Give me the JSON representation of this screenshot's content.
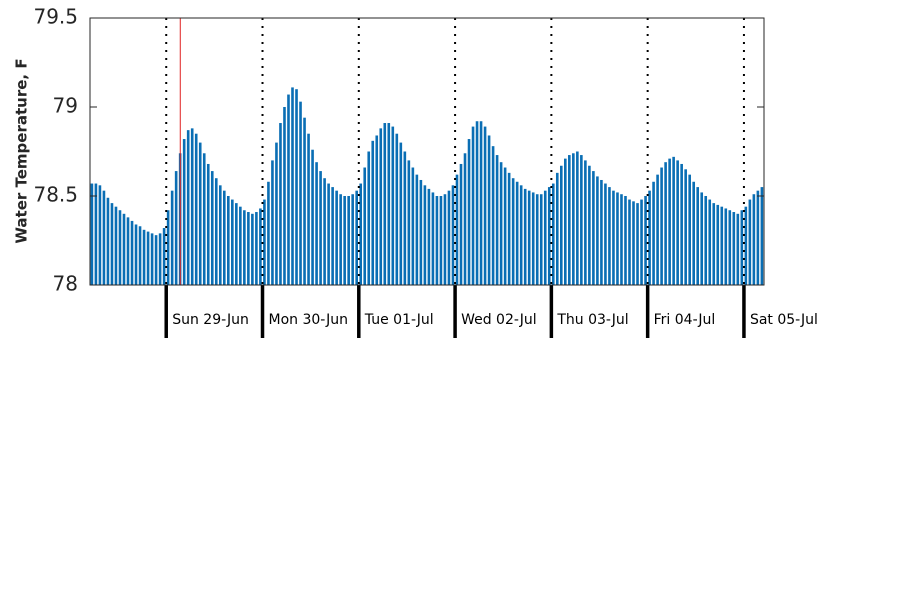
{
  "chart_data": {
    "type": "bar",
    "y_label": "Water Temperature, F",
    "color": "#0a6eb4",
    "ylim": [
      78,
      79.5
    ],
    "yticks": [
      78,
      78.5,
      79,
      79.5
    ],
    "current_index": 22,
    "categories": [
      null,
      null,
      null,
      null,
      null,
      null,
      null,
      null,
      null,
      null,
      null,
      null,
      null,
      null,
      null,
      null,
      null,
      null,
      null,
      "Sun 29-Jun",
      null,
      null,
      null,
      null,
      null,
      null,
      null,
      null,
      null,
      null,
      null,
      null,
      null,
      null,
      null,
      null,
      null,
      null,
      null,
      null,
      null,
      null,
      null,
      "Mon 30-Jun",
      null,
      null,
      null,
      null,
      null,
      null,
      null,
      null,
      null,
      null,
      null,
      null,
      null,
      null,
      null,
      null,
      null,
      null,
      null,
      null,
      null,
      null,
      null,
      "Tue 01-Jul",
      null,
      null,
      null,
      null,
      null,
      null,
      null,
      null,
      null,
      null,
      null,
      null,
      null,
      null,
      null,
      null,
      null,
      null,
      null,
      null,
      null,
      null,
      null,
      "Wed 02-Jul",
      null,
      null,
      null,
      null,
      null,
      null,
      null,
      null,
      null,
      null,
      null,
      null,
      null,
      null,
      null,
      null,
      null,
      null,
      null,
      null,
      null,
      null,
      null,
      "Thu 03-Jul",
      null,
      null,
      null,
      null,
      null,
      null,
      null,
      null,
      null,
      null,
      null,
      null,
      null,
      null,
      null,
      null,
      null,
      null,
      null,
      null,
      null,
      null,
      null,
      "Fri 04-Jul",
      null,
      null,
      null,
      null,
      null,
      null,
      null,
      null,
      null,
      null,
      null,
      null,
      null,
      null,
      null,
      null,
      null,
      null,
      null,
      null,
      null,
      null,
      null,
      "Sat 05-Jul",
      null,
      null,
      null,
      null
    ],
    "values": [
      78.57,
      78.57,
      78.56,
      78.53,
      78.49,
      78.46,
      78.44,
      78.42,
      78.4,
      78.38,
      78.36,
      78.34,
      78.33,
      78.31,
      78.3,
      78.29,
      78.28,
      78.29,
      78.32,
      78.42,
      78.53,
      78.64,
      78.74,
      78.82,
      78.87,
      78.88,
      78.85,
      78.8,
      78.74,
      78.68,
      78.64,
      78.6,
      78.56,
      78.53,
      78.5,
      78.48,
      78.46,
      78.44,
      78.42,
      78.41,
      78.4,
      78.41,
      78.43,
      78.48,
      78.58,
      78.7,
      78.8,
      78.91,
      79.0,
      79.07,
      79.11,
      79.1,
      79.03,
      78.94,
      78.85,
      78.76,
      78.69,
      78.64,
      78.6,
      78.57,
      78.55,
      78.53,
      78.51,
      78.5,
      78.5,
      78.51,
      78.53,
      78.57,
      78.66,
      78.75,
      78.81,
      78.84,
      78.88,
      78.91,
      78.91,
      78.89,
      78.85,
      78.8,
      78.75,
      78.7,
      78.66,
      78.62,
      78.59,
      78.56,
      78.54,
      78.52,
      78.5,
      78.5,
      78.51,
      78.53,
      78.56,
      78.62,
      78.68,
      78.74,
      78.82,
      78.89,
      78.92,
      78.92,
      78.89,
      78.84,
      78.78,
      78.73,
      78.69,
      78.66,
      78.63,
      78.6,
      78.58,
      78.56,
      78.54,
      78.53,
      78.52,
      78.51,
      78.51,
      78.53,
      78.55,
      78.57,
      78.63,
      78.67,
      78.71,
      78.73,
      78.74,
      78.75,
      78.73,
      78.7,
      78.67,
      78.64,
      78.61,
      78.59,
      78.57,
      78.55,
      78.53,
      78.52,
      78.51,
      78.5,
      78.48,
      78.47,
      78.46,
      78.48,
      78.5,
      78.53,
      78.58,
      78.62,
      78.66,
      78.69,
      78.71,
      78.72,
      78.7,
      78.68,
      78.65,
      78.62,
      78.58,
      78.55,
      78.52,
      78.5,
      78.48,
      78.46,
      78.45,
      78.44,
      78.43,
      78.42,
      78.41,
      78.4,
      78.42,
      78.44,
      78.48,
      78.51,
      78.53,
      78.55
    ]
  }
}
